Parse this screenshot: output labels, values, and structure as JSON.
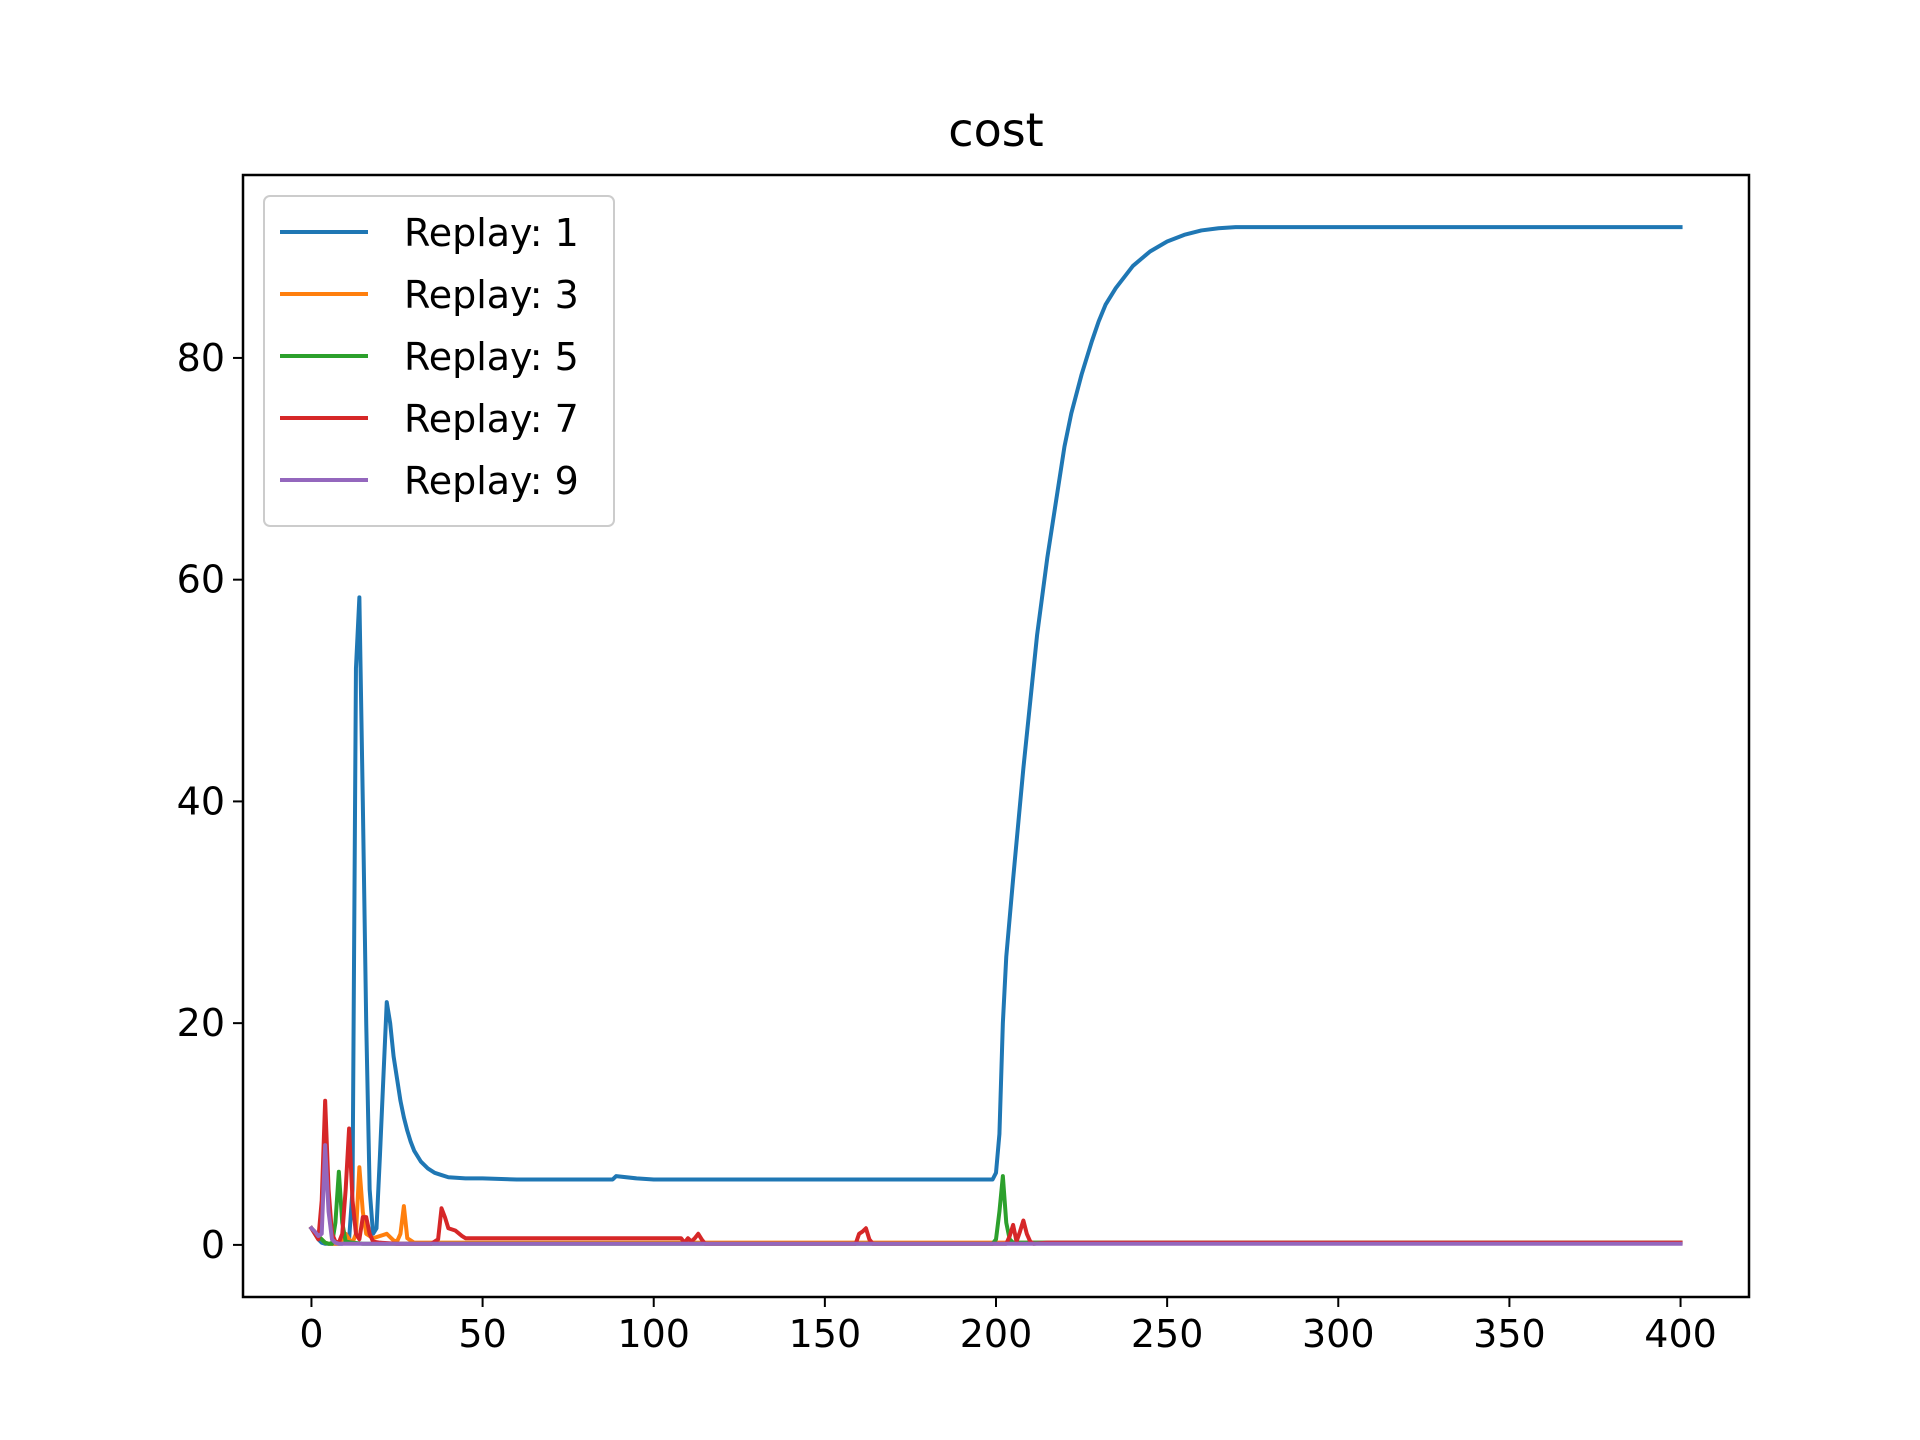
{
  "chart_data": {
    "type": "line",
    "title": "cost",
    "xlabel": "",
    "ylabel": "",
    "xlim": [
      -20,
      420
    ],
    "ylim": [
      -4.7,
      96.5
    ],
    "xticks": [
      0,
      50,
      100,
      150,
      200,
      250,
      300,
      350,
      400
    ],
    "yticks": [
      0,
      20,
      40,
      60,
      80
    ],
    "grid": false,
    "legend_position": "top-left",
    "series": [
      {
        "name": "Replay: 1",
        "color": "#1f77b4",
        "x": [
          0,
          1,
          2,
          3,
          4,
          5,
          6,
          7,
          8,
          9,
          10,
          11,
          12,
          13,
          14,
          15,
          16,
          17,
          18,
          19,
          20,
          21,
          22,
          23,
          24,
          25,
          26,
          27,
          28,
          29,
          30,
          32,
          34,
          36,
          38,
          40,
          45,
          50,
          60,
          70,
          80,
          88,
          89,
          95,
          100,
          120,
          150,
          180,
          199,
          200,
          201,
          202,
          203,
          205,
          208,
          210,
          212,
          215,
          218,
          220,
          222,
          225,
          228,
          230,
          232,
          235,
          240,
          245,
          250,
          255,
          260,
          265,
          270,
          280,
          290,
          300,
          310,
          320,
          330,
          340,
          350,
          360,
          370,
          375,
          380,
          390,
          400
        ],
        "y": [
          1.5,
          1.0,
          0.5,
          0.2,
          0.1,
          0.1,
          0.1,
          0.1,
          0.1,
          0.1,
          0.2,
          0.5,
          5.0,
          52.0,
          58.4,
          40.0,
          20.0,
          5.0,
          1.0,
          1.5,
          8.0,
          15.0,
          21.9,
          20.0,
          17.0,
          15.0,
          13.0,
          11.5,
          10.3,
          9.3,
          8.5,
          7.5,
          6.9,
          6.5,
          6.3,
          6.1,
          6.0,
          6.0,
          5.9,
          5.9,
          5.9,
          5.9,
          6.2,
          6.0,
          5.9,
          5.9,
          5.9,
          5.9,
          5.9,
          6.5,
          10.0,
          20.0,
          26.0,
          33.0,
          43.0,
          49.0,
          55.0,
          62.0,
          68.0,
          72.0,
          75.0,
          78.5,
          81.5,
          83.3,
          84.8,
          86.3,
          88.3,
          89.6,
          90.5,
          91.1,
          91.5,
          91.7,
          91.8,
          91.8,
          91.8,
          91.8,
          91.8,
          91.8,
          91.8,
          91.8,
          91.8,
          91.8,
          91.8,
          91.8,
          91.8,
          91.8,
          91.8
        ]
      },
      {
        "name": "Replay: 3",
        "color": "#ff7f0e",
        "x": [
          0,
          2,
          4,
          5,
          6,
          8,
          9,
          10,
          11,
          12,
          13,
          14,
          15,
          16,
          18,
          20,
          22,
          23,
          24,
          25,
          26,
          27,
          28,
          30,
          40,
          100,
          150,
          200,
          250,
          300,
          350,
          400
        ],
        "y": [
          1.5,
          0.8,
          0.2,
          0.1,
          0.1,
          0.1,
          0.5,
          1.0,
          0.5,
          0.2,
          1.0,
          7.0,
          3.0,
          1.0,
          0.6,
          0.8,
          1.0,
          0.7,
          0.4,
          0.3,
          1.0,
          3.5,
          0.6,
          0.2,
          0.2,
          0.2,
          0.2,
          0.2,
          0.2,
          0.2,
          0.2,
          0.2
        ]
      },
      {
        "name": "Replay: 5",
        "color": "#2ca02c",
        "x": [
          0,
          2,
          4,
          5,
          6,
          7,
          8,
          9,
          10,
          12,
          15,
          20,
          50,
          100,
          150,
          195,
          199,
          200,
          201,
          202,
          203,
          204,
          205,
          210,
          250,
          300,
          350,
          400
        ],
        "y": [
          1.5,
          0.8,
          0.2,
          0.1,
          0.1,
          2.0,
          6.6,
          2.0,
          0.3,
          0.2,
          0.1,
          0.1,
          0.1,
          0.1,
          0.1,
          0.1,
          0.1,
          0.5,
          3.0,
          6.2,
          2.0,
          0.5,
          0.2,
          0.2,
          0.2,
          0.2,
          0.2,
          0.2
        ]
      },
      {
        "name": "Replay: 7",
        "color": "#d62728",
        "x": [
          0,
          1,
          2,
          3,
          4,
          5,
          6,
          7,
          8,
          9,
          10,
          11,
          12,
          13,
          14,
          15,
          16,
          17,
          18,
          20,
          25,
          30,
          35,
          37,
          38,
          39,
          40,
          42,
          44,
          45,
          50,
          60,
          80,
          100,
          108,
          109,
          110,
          111,
          112,
          113,
          114,
          115,
          120,
          150,
          159,
          160,
          161,
          162,
          163,
          164,
          165,
          200,
          203,
          204,
          205,
          206,
          207,
          208,
          209,
          210,
          211,
          215,
          250,
          300,
          350,
          400
        ],
        "y": [
          1.5,
          1.0,
          0.5,
          4.0,
          13.0,
          5.0,
          1.0,
          0.3,
          0.2,
          1.0,
          5.0,
          10.5,
          4.0,
          1.0,
          0.5,
          2.5,
          2.5,
          1.0,
          0.3,
          0.2,
          0.1,
          0.1,
          0.1,
          0.5,
          3.3,
          2.5,
          1.5,
          1.3,
          0.8,
          0.6,
          0.6,
          0.6,
          0.6,
          0.6,
          0.6,
          0.2,
          0.6,
          0.3,
          0.6,
          1.0,
          0.5,
          0.1,
          0.1,
          0.1,
          0.1,
          1.0,
          1.2,
          1.5,
          0.5,
          0.1,
          0.1,
          0.1,
          0.1,
          0.8,
          1.8,
          0.3,
          1.2,
          2.2,
          1.0,
          0.3,
          0.1,
          0.2,
          0.2,
          0.2,
          0.2,
          0.2
        ]
      },
      {
        "name": "Replay: 9",
        "color": "#9467bd",
        "x": [
          0,
          1,
          2,
          3,
          4,
          5,
          6,
          7,
          8,
          10,
          15,
          20,
          50,
          100,
          150,
          200,
          215,
          250,
          300,
          350,
          400
        ],
        "y": [
          1.5,
          1.2,
          0.8,
          1.0,
          9.0,
          3.0,
          0.5,
          0.2,
          0.1,
          0.1,
          0.1,
          0.1,
          0.1,
          0.1,
          0.1,
          0.1,
          0.1,
          0.1,
          0.1,
          0.1,
          0.1
        ]
      }
    ]
  }
}
